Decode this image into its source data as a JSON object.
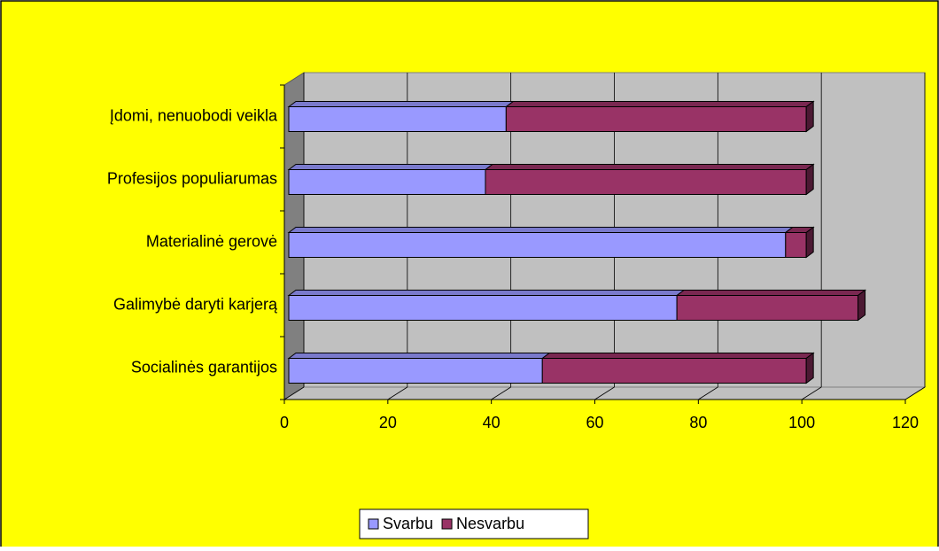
{
  "chart_data": {
    "type": "bar",
    "categories": [
      "Socialinės garantijos",
      "Galimybė daryti karjerą",
      "Materialinė gerovė",
      "Profesijos populiarumas",
      "Įdomi, nenuobodi veikla"
    ],
    "series": [
      {
        "name": "Svarbu",
        "color": "#9999ff",
        "values": [
          49,
          75,
          96,
          38,
          42
        ]
      },
      {
        "name": "Nesvarbu",
        "color": "#993366",
        "values": [
          51,
          35,
          4,
          62,
          58
        ]
      }
    ],
    "xlim": [
      0,
      120
    ],
    "xticks": [
      0,
      20,
      40,
      60,
      80,
      100,
      120
    ],
    "grid": true,
    "stacked": true,
    "legend": "bottom"
  }
}
